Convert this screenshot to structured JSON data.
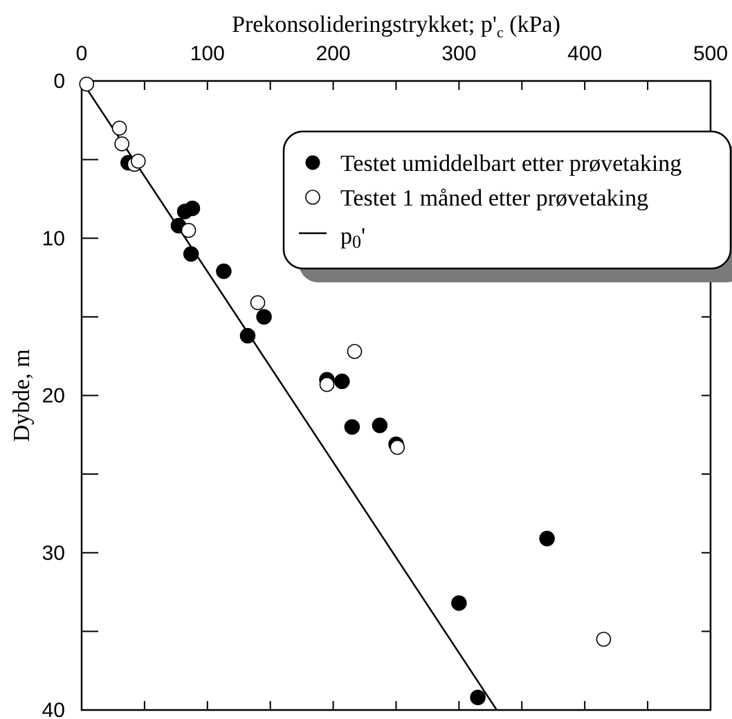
{
  "chart_data": {
    "type": "scatter",
    "title": "",
    "xlabel": "Prekonsolideringstrykket; p'c (kPa)",
    "ylabel": "Dybde, m",
    "xlim": [
      0,
      500
    ],
    "ylim": [
      0,
      40
    ],
    "y_inverted": true,
    "x_axis_position": "top",
    "x_ticks": [
      0,
      100,
      200,
      300,
      400,
      500
    ],
    "y_ticks": [
      0,
      10,
      20,
      30,
      40
    ],
    "grid": false,
    "legend_position": "top-right",
    "series": [
      {
        "name": "Testet umiddelbart etter prøvetaking",
        "marker": "filled-circle",
        "color": "#000000",
        "points": [
          {
            "x": 37,
            "y": 5.2
          },
          {
            "x": 82,
            "y": 8.3
          },
          {
            "x": 88,
            "y": 8.1
          },
          {
            "x": 77,
            "y": 9.2
          },
          {
            "x": 87,
            "y": 11.0
          },
          {
            "x": 113,
            "y": 12.1
          },
          {
            "x": 145,
            "y": 15.0
          },
          {
            "x": 132,
            "y": 16.2
          },
          {
            "x": 195,
            "y": 19.0
          },
          {
            "x": 207,
            "y": 19.1
          },
          {
            "x": 215,
            "y": 22.0
          },
          {
            "x": 237,
            "y": 21.9
          },
          {
            "x": 250,
            "y": 23.1
          },
          {
            "x": 370,
            "y": 29.1
          },
          {
            "x": 300,
            "y": 33.2
          },
          {
            "x": 315,
            "y": 39.2
          }
        ]
      },
      {
        "name": "Testet 1 måned etter prøvetaking",
        "marker": "open-circle",
        "color": "#000000",
        "points": [
          {
            "x": 4,
            "y": 0.2
          },
          {
            "x": 30,
            "y": 3.0
          },
          {
            "x": 32,
            "y": 4.0
          },
          {
            "x": 42,
            "y": 5.3
          },
          {
            "x": 45,
            "y": 5.1
          },
          {
            "x": 85,
            "y": 9.5
          },
          {
            "x": 140,
            "y": 14.1
          },
          {
            "x": 195,
            "y": 19.3
          },
          {
            "x": 217,
            "y": 17.2
          },
          {
            "x": 251,
            "y": 23.3
          },
          {
            "x": 415,
            "y": 35.5
          }
        ]
      },
      {
        "name": "p0'",
        "marker": "line",
        "color": "#000000",
        "points": [
          {
            "x": 0,
            "y": 0
          },
          {
            "x": 330,
            "y": 40
          }
        ]
      }
    ]
  }
}
